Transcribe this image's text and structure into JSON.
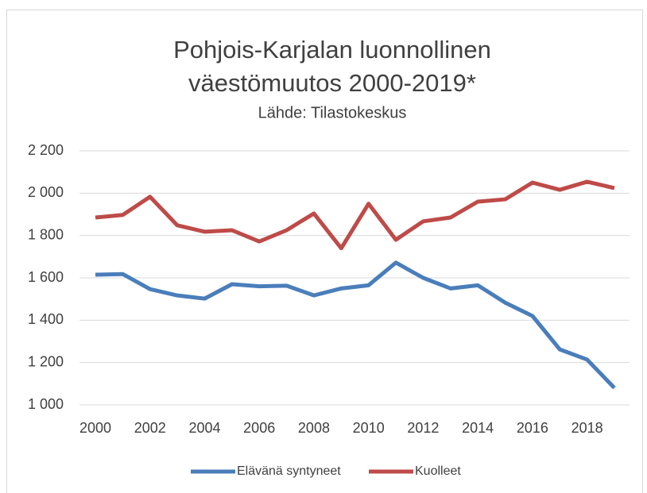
{
  "chart_data": {
    "type": "line",
    "title": [
      "Pohjois-Karjalan luonnollinen",
      "väestömuutos 2000-2019*"
    ],
    "subtitle": "Lähde: Tilastokeskus",
    "x": [
      2000,
      2001,
      2002,
      2003,
      2004,
      2005,
      2006,
      2007,
      2008,
      2009,
      2010,
      2011,
      2012,
      2013,
      2014,
      2015,
      2016,
      2017,
      2018,
      2019
    ],
    "xlim": [
      2000,
      2019
    ],
    "xticks": [
      2000,
      2002,
      2004,
      2006,
      2008,
      2010,
      2012,
      2014,
      2016,
      2018
    ],
    "ylim": [
      1000,
      2200
    ],
    "yticks": [
      {
        "value": 1000,
        "label": "1 000"
      },
      {
        "value": 1200,
        "label": "1 200"
      },
      {
        "value": 1400,
        "label": "1 400"
      },
      {
        "value": 1600,
        "label": "1 600"
      },
      {
        "value": 1800,
        "label": "1 800"
      },
      {
        "value": 2000,
        "label": "2 000"
      },
      {
        "value": 2200,
        "label": "2 200"
      }
    ],
    "grid": true,
    "legend": "bottom",
    "series": [
      {
        "name": "Elävänä syntyneet",
        "color": "#4a7ebb",
        "values": [
          1615,
          1618,
          1547,
          1517,
          1502,
          1570,
          1560,
          1563,
          1517,
          1550,
          1565,
          1672,
          1600,
          1550,
          1565,
          1483,
          1420,
          1262,
          1214,
          1080
        ]
      },
      {
        "name": "Kuolleet",
        "color": "#be4b48",
        "values": [
          1885,
          1897,
          1983,
          1848,
          1818,
          1825,
          1772,
          1825,
          1904,
          1740,
          1950,
          1780,
          1867,
          1885,
          1960,
          1971,
          2050,
          2016,
          2054,
          2024
        ]
      }
    ]
  }
}
